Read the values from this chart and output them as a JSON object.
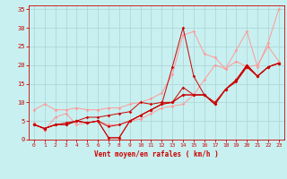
{
  "bg_color": "#c8f0f0",
  "grid_color": "#b0d8d8",
  "line_color_light": "#ff9999",
  "line_color_dark": "#cc0000",
  "xlabel": "Vent moyen/en rafales ( km/h )",
  "xlabel_color": "#cc0000",
  "tick_color": "#cc0000",
  "xlim": [
    -0.5,
    23.5
  ],
  "ylim": [
    0,
    36
  ],
  "xticks": [
    0,
    1,
    2,
    3,
    4,
    5,
    6,
    7,
    8,
    9,
    10,
    11,
    12,
    13,
    14,
    15,
    16,
    17,
    18,
    19,
    20,
    21,
    22,
    23
  ],
  "yticks": [
    0,
    5,
    10,
    15,
    20,
    25,
    30,
    35
  ],
  "series_light": [
    {
      "x": [
        0,
        1,
        2,
        3,
        4,
        5,
        6,
        7,
        8,
        9,
        10,
        11,
        12,
        13,
        14,
        15,
        16,
        17,
        18,
        19,
        20,
        21,
        22,
        23
      ],
      "y": [
        8,
        9.5,
        8,
        8,
        8.5,
        8,
        8,
        8.5,
        8.5,
        9.5,
        10,
        11,
        12.5,
        17.5,
        28,
        29,
        23,
        22,
        19,
        24,
        29,
        19.5,
        26,
        35
      ]
    },
    {
      "x": [
        0,
        1,
        2,
        3,
        4,
        5,
        6,
        7,
        8,
        9,
        10,
        11,
        12,
        13,
        14,
        15,
        16,
        17,
        18,
        19,
        20,
        21,
        22,
        23
      ],
      "y": [
        4.5,
        2.5,
        6,
        7,
        4,
        4.5,
        5,
        4,
        4,
        5,
        5.5,
        7,
        8.5,
        9,
        9.5,
        12,
        16,
        20,
        19,
        21,
        19.5,
        20,
        25,
        21
      ]
    }
  ],
  "series_dark": [
    {
      "x": [
        0,
        1,
        2,
        3,
        4,
        5,
        6,
        7,
        8,
        9,
        10,
        11,
        12,
        13,
        14,
        15,
        16,
        17,
        18,
        19,
        20,
        21,
        22,
        23
      ],
      "y": [
        4,
        3,
        4,
        4.5,
        5,
        6,
        6,
        6.5,
        7,
        7.5,
        10,
        9.5,
        10,
        10,
        14,
        12,
        12,
        10,
        13.5,
        16,
        19.5,
        17,
        19.5,
        20.5
      ]
    },
    {
      "x": [
        0,
        1,
        2,
        3,
        4,
        5,
        6,
        7,
        8,
        9,
        10,
        11,
        12,
        13,
        14,
        15,
        16,
        17,
        18,
        19,
        20,
        21,
        22,
        23
      ],
      "y": [
        4,
        3,
        4,
        4,
        5,
        4.5,
        5,
        3.5,
        4,
        5,
        6.5,
        8,
        9.5,
        10,
        12,
        12,
        12,
        9.5,
        13.5,
        16,
        20,
        17,
        19.5,
        20.5
      ]
    },
    {
      "x": [
        0,
        1,
        2,
        3,
        4,
        5,
        6,
        7,
        8,
        9,
        10,
        11,
        12,
        13,
        14,
        15,
        16,
        17,
        18,
        19,
        20,
        21,
        22,
        23
      ],
      "y": [
        4,
        3,
        4,
        4,
        5,
        4.5,
        5,
        0.5,
        0.5,
        5,
        6.5,
        8,
        9.5,
        19.5,
        30,
        17,
        12,
        9.5,
        13.5,
        16,
        20,
        17,
        19.5,
        20.5
      ]
    },
    {
      "x": [
        0,
        1,
        2,
        3,
        4,
        5,
        6,
        7,
        8,
        9,
        10,
        11,
        12,
        13,
        14,
        15,
        16,
        17,
        18,
        19,
        20,
        21,
        22,
        23
      ],
      "y": [
        4,
        3,
        4,
        4,
        5,
        4.5,
        5,
        0.5,
        0.5,
        5,
        6.5,
        8,
        9.5,
        10,
        12,
        12,
        12,
        9.5,
        13.5,
        15.5,
        19.5,
        17,
        19.5,
        20.5
      ]
    }
  ]
}
